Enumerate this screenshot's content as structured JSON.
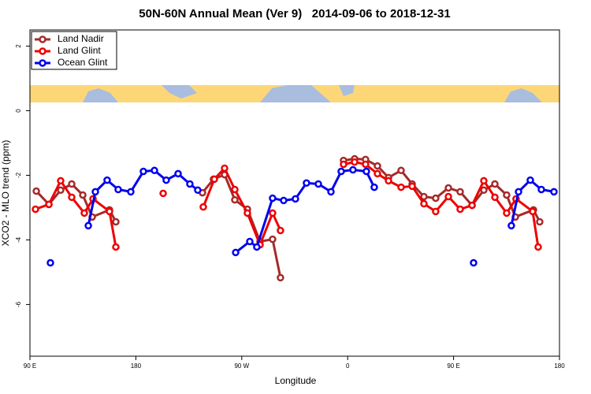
{
  "chart_data": {
    "type": "line",
    "title": "50N-60N Annual Mean (Ver 9)   2014-09-06 to 2018-12-31",
    "xlabel": "Longitude",
    "ylabel": "XCO2 - MLO trend (ppm)",
    "xlim": [
      90,
      540
    ],
    "ylim": [
      -7.6,
      2.5
    ],
    "xticks": [
      {
        "value": 90,
        "label": "90 E"
      },
      {
        "value": 180,
        "label": "180"
      },
      {
        "value": 270,
        "label": "90 W"
      },
      {
        "value": 360,
        "label": "0"
      },
      {
        "value": 450,
        "label": "90 E"
      },
      {
        "value": 540,
        "label": "180"
      }
    ],
    "yticks": [
      2,
      0,
      -2,
      -4,
      -6
    ],
    "legend": "top-left",
    "series": [
      {
        "name": "Land Nadir",
        "color": "#a52a2a",
        "x": [
          95.4,
          106.1,
          116.1,
          125.5,
          134.9,
          142.9,
          157.6,
          163.0,
          null,
          236.6,
          246.0,
          255.4,
          264.1,
          274.8,
          285.5,
          296.2,
          302.9,
          null,
          356.5,
          365.9,
          375.2,
          385.3,
          394.7,
          405.4,
          414.8,
          424.8,
          434.8,
          445.6,
          455.6,
          465.7,
          475.7,
          485.1,
          495.1,
          502.5,
          517.9,
          523.2
        ],
        "values": [
          -2.49,
          -2.9,
          -2.46,
          -2.27,
          -2.61,
          -3.29,
          -3.07,
          -3.44,
          null,
          -2.54,
          -2.12,
          -1.98,
          -2.76,
          -3.05,
          -4.05,
          -3.98,
          -5.17,
          null,
          -1.54,
          -1.49,
          -1.51,
          -1.71,
          -2.07,
          -1.85,
          -2.27,
          -2.66,
          -2.71,
          -2.39,
          -2.51,
          -2.93,
          -2.46,
          -2.27,
          -2.61,
          -3.29,
          -3.07,
          -3.44
        ]
      },
      {
        "name": "Land Glint",
        "color": "#ee0000",
        "x": [
          94.7,
          106.1,
          116.1,
          125.5,
          136.2,
          143.6,
          157.6,
          163.0,
          null,
          203.2,
          null,
          237.3,
          246.7,
          255.4,
          264.1,
          274.8,
          285.5,
          296.2,
          302.9,
          null,
          356.5,
          365.9,
          375.2,
          385.3,
          394.7,
          405.4,
          414.8,
          424.8,
          434.8,
          445.6,
          455.6,
          465.7,
          475.7,
          485.1,
          495.1,
          503.1,
          517.2,
          521.9
        ],
        "values": [
          -3.05,
          -2.9,
          -2.17,
          -2.68,
          -3.17,
          -2.73,
          -3.12,
          -4.22,
          null,
          -2.56,
          null,
          -2.98,
          -2.12,
          -1.78,
          -2.44,
          -3.17,
          -4.15,
          -3.17,
          -3.71,
          null,
          -1.66,
          -1.59,
          -1.66,
          -1.95,
          -2.17,
          -2.37,
          -2.34,
          -2.88,
          -3.12,
          -2.66,
          -3.05,
          -2.93,
          -2.17,
          -2.68,
          -3.17,
          -2.73,
          -3.12,
          -4.22
        ]
      },
      {
        "name": "Ocean Glint",
        "color": "#0000ee",
        "x": [
          107.4,
          null,
          139.6,
          145.6,
          155.6,
          165.0,
          175.7,
          186.4,
          195.8,
          205.8,
          215.9,
          225.9,
          232.6,
          null,
          264.8,
          276.8,
          282.8,
          296.2,
          305.6,
          315.6,
          325.0,
          335.1,
          345.8,
          354.5,
          364.5,
          375.9,
          382.6,
          null,
          467.0,
          null,
          499.1,
          505.2,
          515.2,
          524.6,
          535.3
        ],
        "values": [
          -4.71,
          null,
          -3.56,
          -2.51,
          -2.15,
          -2.44,
          -2.51,
          -1.88,
          -1.85,
          -2.15,
          -1.95,
          -2.27,
          -2.46,
          null,
          -4.39,
          -4.05,
          -4.22,
          -2.71,
          -2.78,
          -2.73,
          -2.24,
          -2.27,
          -2.51,
          -1.88,
          -1.83,
          -1.88,
          -2.37,
          null,
          -4.71,
          null,
          -3.56,
          -2.51,
          -2.15,
          -2.44,
          -2.51
        ]
      }
    ]
  }
}
